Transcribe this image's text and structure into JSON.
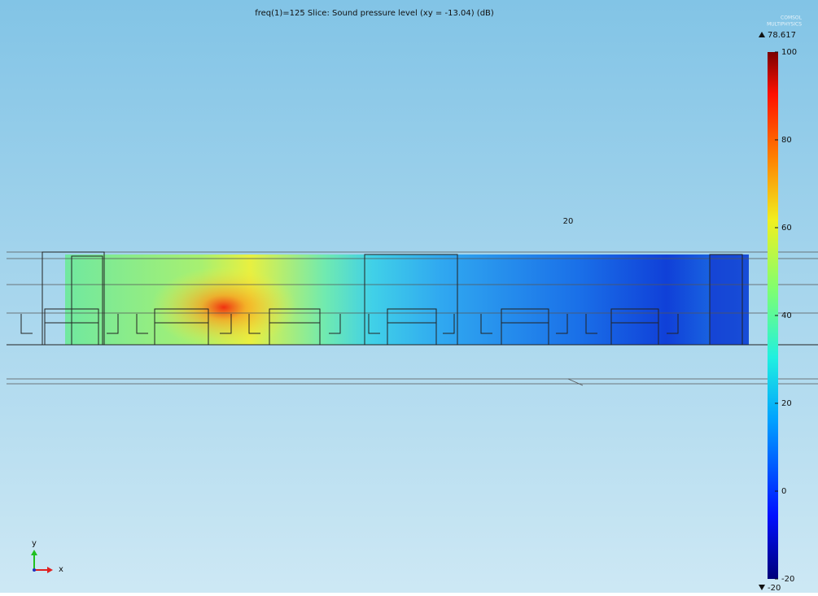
{
  "header": {
    "title": "freq(1)=125  Slice: Sound pressure level (xy = -13.04) (dB)",
    "logo_top": "COMSOL",
    "logo_bottom": "MULTIPHYSICS"
  },
  "colorbar": {
    "max": 78.617,
    "min": -20,
    "range": [
      -20,
      100
    ],
    "ticks": [
      100,
      80,
      60,
      40,
      20,
      0,
      -20
    ]
  },
  "annotation": "20",
  "axes": {
    "y": "y",
    "x": "x"
  }
}
